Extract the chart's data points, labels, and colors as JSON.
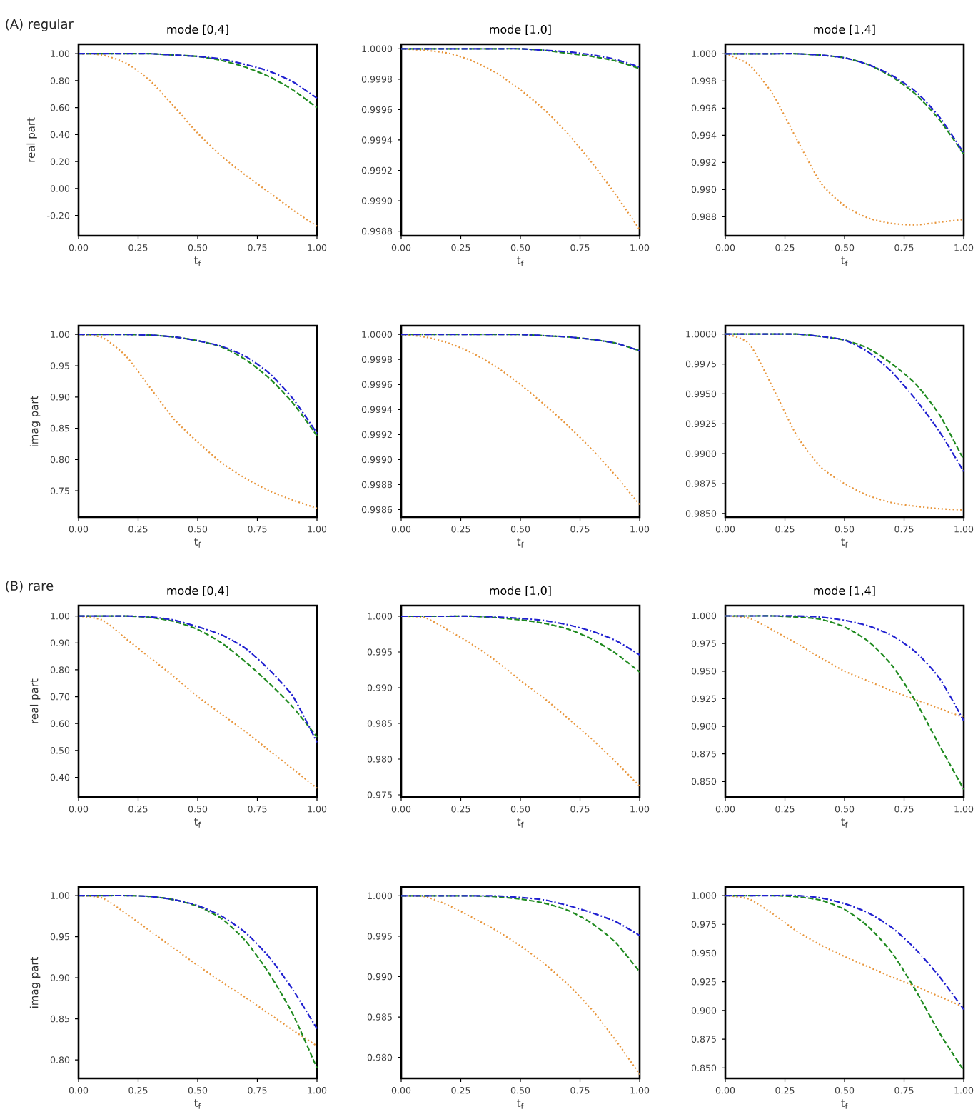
{
  "chart_data": [
    {
      "type": "line",
      "title": "mode [0,4]",
      "ylabel": "real part",
      "xlabel": "t$_{f}$",
      "annotations": [
        "(A) regular"
      ],
      "x": [
        0,
        0.1,
        0.2,
        0.3,
        0.4,
        0.5,
        0.6,
        0.7,
        0.8,
        0.9,
        1.0
      ],
      "xlim": [
        0,
        1
      ],
      "ylim": [
        -0.35,
        1.07
      ],
      "xticks": [
        {
          "value": 0,
          "label": "0.00"
        },
        {
          "value": 0.25,
          "label": "0.25"
        },
        {
          "value": 0.5,
          "label": "0.50"
        },
        {
          "value": 0.75,
          "label": "0.75"
        },
        {
          "value": 1,
          "label": "1.00"
        }
      ],
      "yticks": [
        {
          "value": -0.2,
          "label": "-0.20"
        },
        {
          "value": 0,
          "label": "0.00"
        },
        {
          "value": 0.2,
          "label": "0.20"
        },
        {
          "value": 0.4,
          "label": "0.40"
        },
        {
          "value": 0.6,
          "label": "0.60"
        },
        {
          "value": 0.8,
          "label": "0.80"
        },
        {
          "value": 1,
          "label": "1.00"
        }
      ],
      "grid": false,
      "marker": "none",
      "series": [
        {
          "color": "#e8963c",
          "line_style": "dotted",
          "values": [
            1.0,
            0.99,
            0.93,
            0.8,
            0.61,
            0.41,
            0.24,
            0.1,
            -0.03,
            -0.16,
            -0.28
          ]
        },
        {
          "color": "#1f8a1f",
          "line_style": "dashed",
          "values": [
            1.0,
            1.0,
            1.0,
            1.0,
            0.99,
            0.98,
            0.95,
            0.9,
            0.83,
            0.73,
            0.6
          ]
        },
        {
          "color": "#2020d0",
          "line_style": "dashdot",
          "values": [
            1.0,
            1.0,
            1.0,
            1.0,
            0.99,
            0.98,
            0.96,
            0.92,
            0.87,
            0.79,
            0.67
          ]
        }
      ]
    },
    {
      "type": "line",
      "title": "mode [1,0]",
      "xlabel": "t$_{f}$",
      "x": [
        0,
        0.1,
        0.2,
        0.3,
        0.4,
        0.5,
        0.6,
        0.7,
        0.8,
        0.9,
        1.0
      ],
      "xlim": [
        0,
        1
      ],
      "ylim": [
        0.99877,
        1.00003
      ],
      "xticks": [
        {
          "value": 0,
          "label": "0.00"
        },
        {
          "value": 0.25,
          "label": "0.25"
        },
        {
          "value": 0.5,
          "label": "0.50"
        },
        {
          "value": 0.75,
          "label": "0.75"
        },
        {
          "value": 1,
          "label": "1.00"
        }
      ],
      "yticks": [
        {
          "value": 0.9988,
          "label": "0.9988"
        },
        {
          "value": 0.999,
          "label": "0.9990"
        },
        {
          "value": 0.9992,
          "label": "0.9992"
        },
        {
          "value": 0.9994,
          "label": "0.9994"
        },
        {
          "value": 0.9996,
          "label": "0.9996"
        },
        {
          "value": 0.9998,
          "label": "0.9998"
        },
        {
          "value": 1,
          "label": "1.0000"
        }
      ],
      "grid": false,
      "marker": "none",
      "series": [
        {
          "color": "#e8963c",
          "line_style": "dotted",
          "values": [
            1.0,
            0.99999,
            0.99997,
            0.99992,
            0.99984,
            0.99973,
            0.9996,
            0.99944,
            0.99925,
            0.99904,
            0.99881
          ]
        },
        {
          "color": "#1f8a1f",
          "line_style": "dashed",
          "values": [
            1.0,
            1.0,
            1.0,
            1.0,
            1.0,
            1.0,
            0.99999,
            0.99997,
            0.99995,
            0.99992,
            0.99987
          ]
        },
        {
          "color": "#2020d0",
          "line_style": "dashdot",
          "values": [
            1.0,
            1.0,
            1.0,
            1.0,
            1.0,
            1.0,
            0.99999,
            0.99998,
            0.99996,
            0.99993,
            0.99988
          ]
        }
      ]
    },
    {
      "type": "line",
      "title": "mode [1,4]",
      "xlabel": "t$_{f}$",
      "x": [
        0,
        0.1,
        0.2,
        0.3,
        0.4,
        0.5,
        0.6,
        0.7,
        0.8,
        0.9,
        1.0
      ],
      "xlim": [
        0,
        1
      ],
      "ylim": [
        0.9866,
        1.0007
      ],
      "xticks": [
        {
          "value": 0,
          "label": "0.00"
        },
        {
          "value": 0.25,
          "label": "0.25"
        },
        {
          "value": 0.5,
          "label": "0.50"
        },
        {
          "value": 0.75,
          "label": "0.75"
        },
        {
          "value": 1,
          "label": "1.00"
        }
      ],
      "yticks": [
        {
          "value": 0.988,
          "label": "0.988"
        },
        {
          "value": 0.99,
          "label": "0.990"
        },
        {
          "value": 0.992,
          "label": "0.992"
        },
        {
          "value": 0.994,
          "label": "0.994"
        },
        {
          "value": 0.996,
          "label": "0.996"
        },
        {
          "value": 0.998,
          "label": "0.998"
        },
        {
          "value": 1,
          "label": "1.000"
        }
      ],
      "grid": false,
      "marker": "none",
      "series": [
        {
          "color": "#e8963c",
          "line_style": "dotted",
          "values": [
            1.0,
            0.9992,
            0.997,
            0.9937,
            0.9905,
            0.9888,
            0.9879,
            0.9875,
            0.9874,
            0.9876,
            0.9878
          ]
        },
        {
          "color": "#1f8a1f",
          "line_style": "dashed",
          "values": [
            1.0,
            1.0,
            1.0,
            1.0,
            0.9999,
            0.9997,
            0.9992,
            0.9983,
            0.997,
            0.9951,
            0.9926
          ]
        },
        {
          "color": "#2020d0",
          "line_style": "dashdot",
          "values": [
            1.0,
            1.0,
            1.0,
            1.0,
            0.9999,
            0.9997,
            0.9992,
            0.9984,
            0.9972,
            0.9953,
            0.9927
          ]
        }
      ]
    },
    {
      "type": "line",
      "ylabel": "imag part",
      "xlabel": "t$_{f}$",
      "x": [
        0,
        0.1,
        0.2,
        0.3,
        0.4,
        0.5,
        0.6,
        0.7,
        0.8,
        0.9,
        1.0
      ],
      "xlim": [
        0,
        1
      ],
      "ylim": [
        0.708,
        1.014
      ],
      "xticks": [
        {
          "value": 0,
          "label": "0.00"
        },
        {
          "value": 0.25,
          "label": "0.25"
        },
        {
          "value": 0.5,
          "label": "0.50"
        },
        {
          "value": 0.75,
          "label": "0.75"
        },
        {
          "value": 1,
          "label": "1.00"
        }
      ],
      "yticks": [
        {
          "value": 0.75,
          "label": "0.75"
        },
        {
          "value": 0.8,
          "label": "0.80"
        },
        {
          "value": 0.85,
          "label": "0.85"
        },
        {
          "value": 0.9,
          "label": "0.90"
        },
        {
          "value": 0.95,
          "label": "0.95"
        },
        {
          "value": 1,
          "label": "1.00"
        }
      ],
      "grid": false,
      "marker": "none",
      "series": [
        {
          "color": "#e8963c",
          "line_style": "dotted",
          "values": [
            1.0,
            0.995,
            0.965,
            0.915,
            0.865,
            0.828,
            0.795,
            0.77,
            0.75,
            0.735,
            0.722
          ]
        },
        {
          "color": "#1f8a1f",
          "line_style": "dashed",
          "values": [
            1.0,
            1.0,
            1.0,
            0.999,
            0.996,
            0.99,
            0.98,
            0.96,
            0.93,
            0.89,
            0.838
          ]
        },
        {
          "color": "#2020d0",
          "line_style": "dashdot",
          "values": [
            1.0,
            1.0,
            1.0,
            0.999,
            0.996,
            0.99,
            0.981,
            0.965,
            0.938,
            0.897,
            0.842
          ]
        }
      ]
    },
    {
      "type": "line",
      "xlabel": "t$_{f}$",
      "x": [
        0,
        0.1,
        0.2,
        0.3,
        0.4,
        0.5,
        0.6,
        0.7,
        0.8,
        0.9,
        1.0
      ],
      "xlim": [
        0,
        1
      ],
      "ylim": [
        0.99854,
        1.00007
      ],
      "xticks": [
        {
          "value": 0,
          "label": "0.00"
        },
        {
          "value": 0.25,
          "label": "0.25"
        },
        {
          "value": 0.5,
          "label": "0.50"
        },
        {
          "value": 0.75,
          "label": "0.75"
        },
        {
          "value": 1,
          "label": "1.00"
        }
      ],
      "yticks": [
        {
          "value": 0.9986,
          "label": "0.9986"
        },
        {
          "value": 0.9988,
          "label": "0.9988"
        },
        {
          "value": 0.999,
          "label": "0.9990"
        },
        {
          "value": 0.9992,
          "label": "0.9992"
        },
        {
          "value": 0.9994,
          "label": "0.9994"
        },
        {
          "value": 0.9996,
          "label": "0.9996"
        },
        {
          "value": 0.9998,
          "label": "0.9998"
        },
        {
          "value": 1,
          "label": "1.0000"
        }
      ],
      "grid": false,
      "marker": "none",
      "series": [
        {
          "color": "#e8963c",
          "line_style": "dotted",
          "values": [
            1.0,
            0.99998,
            0.99993,
            0.99985,
            0.99974,
            0.9996,
            0.99944,
            0.99927,
            0.99908,
            0.99887,
            0.99864
          ]
        },
        {
          "color": "#1f8a1f",
          "line_style": "dashed",
          "values": [
            1.0,
            1.0,
            1.0,
            1.0,
            1.0,
            1.0,
            0.99999,
            0.99998,
            0.99996,
            0.99993,
            0.99987
          ]
        },
        {
          "color": "#2020d0",
          "line_style": "dashdot",
          "values": [
            1.0,
            1.0,
            1.0,
            1.0,
            1.0,
            1.0,
            0.99999,
            0.99998,
            0.99996,
            0.99993,
            0.99987
          ]
        }
      ]
    },
    {
      "type": "line",
      "xlabel": "t$_{f}$",
      "x": [
        0,
        0.1,
        0.2,
        0.3,
        0.4,
        0.5,
        0.6,
        0.7,
        0.8,
        0.9,
        1.0
      ],
      "xlim": [
        0,
        1
      ],
      "ylim": [
        0.9847,
        1.0007
      ],
      "xticks": [
        {
          "value": 0,
          "label": "0.00"
        },
        {
          "value": 0.25,
          "label": "0.25"
        },
        {
          "value": 0.5,
          "label": "0.50"
        },
        {
          "value": 0.75,
          "label": "0.75"
        },
        {
          "value": 1,
          "label": "1.00"
        }
      ],
      "yticks": [
        {
          "value": 0.985,
          "label": "0.9850"
        },
        {
          "value": 0.9875,
          "label": "0.9875"
        },
        {
          "value": 0.99,
          "label": "0.9900"
        },
        {
          "value": 0.9925,
          "label": "0.9925"
        },
        {
          "value": 0.995,
          "label": "0.9950"
        },
        {
          "value": 0.9975,
          "label": "0.9975"
        },
        {
          "value": 1,
          "label": "1.0000"
        }
      ],
      "grid": false,
      "marker": "none",
      "series": [
        {
          "color": "#e8963c",
          "line_style": "dotted",
          "values": [
            1.0,
            0.9992,
            0.9955,
            0.9915,
            0.9889,
            0.9875,
            0.9865,
            0.9859,
            0.9856,
            0.9854,
            0.9853
          ]
        },
        {
          "color": "#1f8a1f",
          "line_style": "dashed",
          "values": [
            1.0,
            1.0,
            1.0,
            1.0,
            0.9998,
            0.9995,
            0.9988,
            0.9975,
            0.9958,
            0.9932,
            0.9895
          ]
        },
        {
          "color": "#2020d0",
          "line_style": "dashdot",
          "values": [
            1.0,
            1.0,
            1.0,
            1.0,
            0.9998,
            0.9995,
            0.9985,
            0.9968,
            0.9945,
            0.9918,
            0.9885
          ]
        }
      ]
    },
    {
      "type": "line",
      "title": "mode [0,4]",
      "ylabel": "real part",
      "xlabel": "t$_{f}$",
      "annotations": [
        "(B) rare"
      ],
      "x": [
        0,
        0.1,
        0.2,
        0.3,
        0.4,
        0.5,
        0.6,
        0.7,
        0.8,
        0.9,
        1.0
      ],
      "xlim": [
        0,
        1
      ],
      "ylim": [
        0.327,
        1.039
      ],
      "xticks": [
        {
          "value": 0,
          "label": "0.00"
        },
        {
          "value": 0.25,
          "label": "0.25"
        },
        {
          "value": 0.5,
          "label": "0.50"
        },
        {
          "value": 0.75,
          "label": "0.75"
        },
        {
          "value": 1,
          "label": "1.00"
        }
      ],
      "yticks": [
        {
          "value": 0.4,
          "label": "0.40"
        },
        {
          "value": 0.5,
          "label": "0.50"
        },
        {
          "value": 0.6,
          "label": "0.60"
        },
        {
          "value": 0.7,
          "label": "0.70"
        },
        {
          "value": 0.8,
          "label": "0.80"
        },
        {
          "value": 0.9,
          "label": "0.90"
        },
        {
          "value": 1,
          "label": "1.00"
        }
      ],
      "grid": false,
      "marker": "none",
      "series": [
        {
          "color": "#e8963c",
          "line_style": "dotted",
          "values": [
            1.0,
            0.985,
            0.915,
            0.845,
            0.775,
            0.7,
            0.635,
            0.57,
            0.5,
            0.43,
            0.36
          ]
        },
        {
          "color": "#1f8a1f",
          "line_style": "dashed",
          "values": [
            1.0,
            1.0,
            1.0,
            0.995,
            0.98,
            0.95,
            0.9,
            0.83,
            0.75,
            0.66,
            0.55
          ]
        },
        {
          "color": "#2020d0",
          "line_style": "dashdot",
          "values": [
            1.0,
            1.0,
            1.0,
            0.997,
            0.985,
            0.96,
            0.93,
            0.88,
            0.8,
            0.7,
            0.53
          ]
        }
      ]
    },
    {
      "type": "line",
      "title": "mode [1,0]",
      "xlabel": "t$_{f}$",
      "x": [
        0,
        0.1,
        0.2,
        0.3,
        0.4,
        0.5,
        0.6,
        0.7,
        0.8,
        0.9,
        1.0
      ],
      "xlim": [
        0,
        1
      ],
      "ylim": [
        0.9747,
        1.0015
      ],
      "xticks": [
        {
          "value": 0,
          "label": "0.00"
        },
        {
          "value": 0.25,
          "label": "0.25"
        },
        {
          "value": 0.5,
          "label": "0.50"
        },
        {
          "value": 0.75,
          "label": "0.75"
        },
        {
          "value": 1,
          "label": "1.00"
        }
      ],
      "yticks": [
        {
          "value": 0.975,
          "label": "0.975"
        },
        {
          "value": 0.98,
          "label": "0.980"
        },
        {
          "value": 0.985,
          "label": "0.985"
        },
        {
          "value": 0.99,
          "label": "0.990"
        },
        {
          "value": 0.995,
          "label": "0.995"
        },
        {
          "value": 1,
          "label": "1.000"
        }
      ],
      "grid": false,
      "marker": "none",
      "series": [
        {
          "color": "#e8963c",
          "line_style": "dotted",
          "values": [
            1.0,
            0.9998,
            0.998,
            0.996,
            0.9937,
            0.991,
            0.9885,
            0.9857,
            0.9828,
            0.9796,
            0.9762
          ]
        },
        {
          "color": "#1f8a1f",
          "line_style": "dashed",
          "values": [
            1.0,
            1.0,
            1.0,
            1.0,
            0.9998,
            0.9995,
            0.999,
            0.9982,
            0.9968,
            0.9948,
            0.9922
          ]
        },
        {
          "color": "#2020d0",
          "line_style": "dashdot",
          "values": [
            1.0,
            1.0,
            1.0,
            1.0,
            0.9999,
            0.9997,
            0.9994,
            0.9988,
            0.9979,
            0.9966,
            0.9946
          ]
        }
      ]
    },
    {
      "type": "line",
      "title": "mode [1,4]",
      "xlabel": "t$_{f}$",
      "x": [
        0,
        0.1,
        0.2,
        0.3,
        0.4,
        0.5,
        0.6,
        0.7,
        0.8,
        0.9,
        1.0
      ],
      "xlim": [
        0,
        1
      ],
      "ylim": [
        0.836,
        1.0094
      ],
      "xticks": [
        {
          "value": 0,
          "label": "0.00"
        },
        {
          "value": 0.25,
          "label": "0.25"
        },
        {
          "value": 0.5,
          "label": "0.50"
        },
        {
          "value": 0.75,
          "label": "0.75"
        },
        {
          "value": 1,
          "label": "1.00"
        }
      ],
      "yticks": [
        {
          "value": 0.85,
          "label": "0.850"
        },
        {
          "value": 0.875,
          "label": "0.875"
        },
        {
          "value": 0.9,
          "label": "0.900"
        },
        {
          "value": 0.925,
          "label": "0.925"
        },
        {
          "value": 0.95,
          "label": "0.950"
        },
        {
          "value": 0.975,
          "label": "0.975"
        },
        {
          "value": 1,
          "label": "1.000"
        }
      ],
      "grid": false,
      "marker": "none",
      "series": [
        {
          "color": "#e8963c",
          "line_style": "dotted",
          "values": [
            1.0,
            0.998,
            0.987,
            0.975,
            0.962,
            0.95,
            0.941,
            0.932,
            0.924,
            0.916,
            0.908
          ]
        },
        {
          "color": "#1f8a1f",
          "line_style": "dashed",
          "values": [
            1.0,
            1.0,
            1.0,
            0.999,
            0.997,
            0.99,
            0.977,
            0.955,
            0.922,
            0.882,
            0.843
          ]
        },
        {
          "color": "#2020d0",
          "line_style": "dashdot",
          "values": [
            1.0,
            1.0,
            1.0,
            1.0,
            0.999,
            0.996,
            0.991,
            0.982,
            0.967,
            0.943,
            0.905
          ]
        }
      ]
    },
    {
      "type": "line",
      "ylabel": "imag part",
      "xlabel": "t$_{f}$",
      "x": [
        0,
        0.1,
        0.2,
        0.3,
        0.4,
        0.5,
        0.6,
        0.7,
        0.8,
        0.9,
        1.0
      ],
      "xlim": [
        0,
        1
      ],
      "ylim": [
        0.7775,
        1.0105
      ],
      "xticks": [
        {
          "value": 0,
          "label": "0.00"
        },
        {
          "value": 0.25,
          "label": "0.25"
        },
        {
          "value": 0.5,
          "label": "0.50"
        },
        {
          "value": 0.75,
          "label": "0.75"
        },
        {
          "value": 1,
          "label": "1.00"
        }
      ],
      "yticks": [
        {
          "value": 0.8,
          "label": "0.80"
        },
        {
          "value": 0.85,
          "label": "0.85"
        },
        {
          "value": 0.9,
          "label": "0.90"
        },
        {
          "value": 0.95,
          "label": "0.95"
        },
        {
          "value": 1,
          "label": "1.00"
        }
      ],
      "grid": false,
      "marker": "none",
      "series": [
        {
          "color": "#e8963c",
          "line_style": "dotted",
          "values": [
            1.0,
            0.997,
            0.978,
            0.957,
            0.936,
            0.915,
            0.895,
            0.876,
            0.856,
            0.836,
            0.817
          ]
        },
        {
          "color": "#1f8a1f",
          "line_style": "dashed",
          "values": [
            1.0,
            1.0,
            1.0,
            0.999,
            0.995,
            0.987,
            0.972,
            0.945,
            0.905,
            0.855,
            0.79
          ]
        },
        {
          "color": "#2020d0",
          "line_style": "dashdot",
          "values": [
            1.0,
            1.0,
            1.0,
            0.999,
            0.995,
            0.988,
            0.975,
            0.955,
            0.925,
            0.885,
            0.838
          ]
        }
      ]
    },
    {
      "type": "line",
      "xlabel": "t$_{f}$",
      "x": [
        0,
        0.1,
        0.2,
        0.3,
        0.4,
        0.5,
        0.6,
        0.7,
        0.8,
        0.9,
        1.0
      ],
      "xlim": [
        0,
        1
      ],
      "ylim": [
        0.9774,
        1.0011
      ],
      "xticks": [
        {
          "value": 0,
          "label": "0.00"
        },
        {
          "value": 0.25,
          "label": "0.25"
        },
        {
          "value": 0.5,
          "label": "0.50"
        },
        {
          "value": 0.75,
          "label": "0.75"
        },
        {
          "value": 1,
          "label": "1.00"
        }
      ],
      "yticks": [
        {
          "value": 0.98,
          "label": "0.980"
        },
        {
          "value": 0.985,
          "label": "0.985"
        },
        {
          "value": 0.99,
          "label": "0.990"
        },
        {
          "value": 0.995,
          "label": "0.995"
        },
        {
          "value": 1,
          "label": "1.000"
        }
      ],
      "grid": false,
      "marker": "none",
      "series": [
        {
          "color": "#e8963c",
          "line_style": "dotted",
          "values": [
            1.0,
            0.9999,
            0.9988,
            0.9973,
            0.9957,
            0.9938,
            0.9916,
            0.989,
            0.9859,
            0.9821,
            0.9779
          ]
        },
        {
          "color": "#1f8a1f",
          "line_style": "dashed",
          "values": [
            1.0,
            1.0,
            1.0,
            1.0,
            0.9999,
            0.9996,
            0.9991,
            0.9982,
            0.9966,
            0.9942,
            0.9906
          ]
        },
        {
          "color": "#2020d0",
          "line_style": "dashdot",
          "values": [
            1.0,
            1.0,
            1.0,
            1.0,
            1.0,
            0.9998,
            0.9995,
            0.9988,
            0.9979,
            0.9968,
            0.9951
          ]
        }
      ]
    },
    {
      "type": "line",
      "xlabel": "t$_{f}$",
      "x": [
        0,
        0.1,
        0.2,
        0.3,
        0.4,
        0.5,
        0.6,
        0.7,
        0.8,
        0.9,
        1.0
      ],
      "xlim": [
        0,
        1
      ],
      "ylim": [
        0.8409,
        1.0075
      ],
      "xticks": [
        {
          "value": 0,
          "label": "0.00"
        },
        {
          "value": 0.25,
          "label": "0.25"
        },
        {
          "value": 0.5,
          "label": "0.50"
        },
        {
          "value": 0.75,
          "label": "0.75"
        },
        {
          "value": 1,
          "label": "1.00"
        }
      ],
      "yticks": [
        {
          "value": 0.85,
          "label": "0.850"
        },
        {
          "value": 0.875,
          "label": "0.875"
        },
        {
          "value": 0.9,
          "label": "0.900"
        },
        {
          "value": 0.925,
          "label": "0.925"
        },
        {
          "value": 0.95,
          "label": "0.950"
        },
        {
          "value": 0.975,
          "label": "0.975"
        },
        {
          "value": 1,
          "label": "1.000"
        }
      ],
      "grid": false,
      "marker": "none",
      "series": [
        {
          "color": "#e8963c",
          "line_style": "dotted",
          "values": [
            1.0,
            0.997,
            0.984,
            0.969,
            0.957,
            0.947,
            0.938,
            0.929,
            0.921,
            0.912,
            0.903
          ]
        },
        {
          "color": "#1f8a1f",
          "line_style": "dashed",
          "values": [
            1.0,
            1.0,
            1.0,
            0.999,
            0.996,
            0.988,
            0.973,
            0.95,
            0.917,
            0.88,
            0.848
          ]
        },
        {
          "color": "#2020d0",
          "line_style": "dashdot",
          "values": [
            1.0,
            1.0,
            1.0,
            1.0,
            0.998,
            0.993,
            0.985,
            0.972,
            0.953,
            0.929,
            0.901
          ]
        }
      ]
    }
  ]
}
